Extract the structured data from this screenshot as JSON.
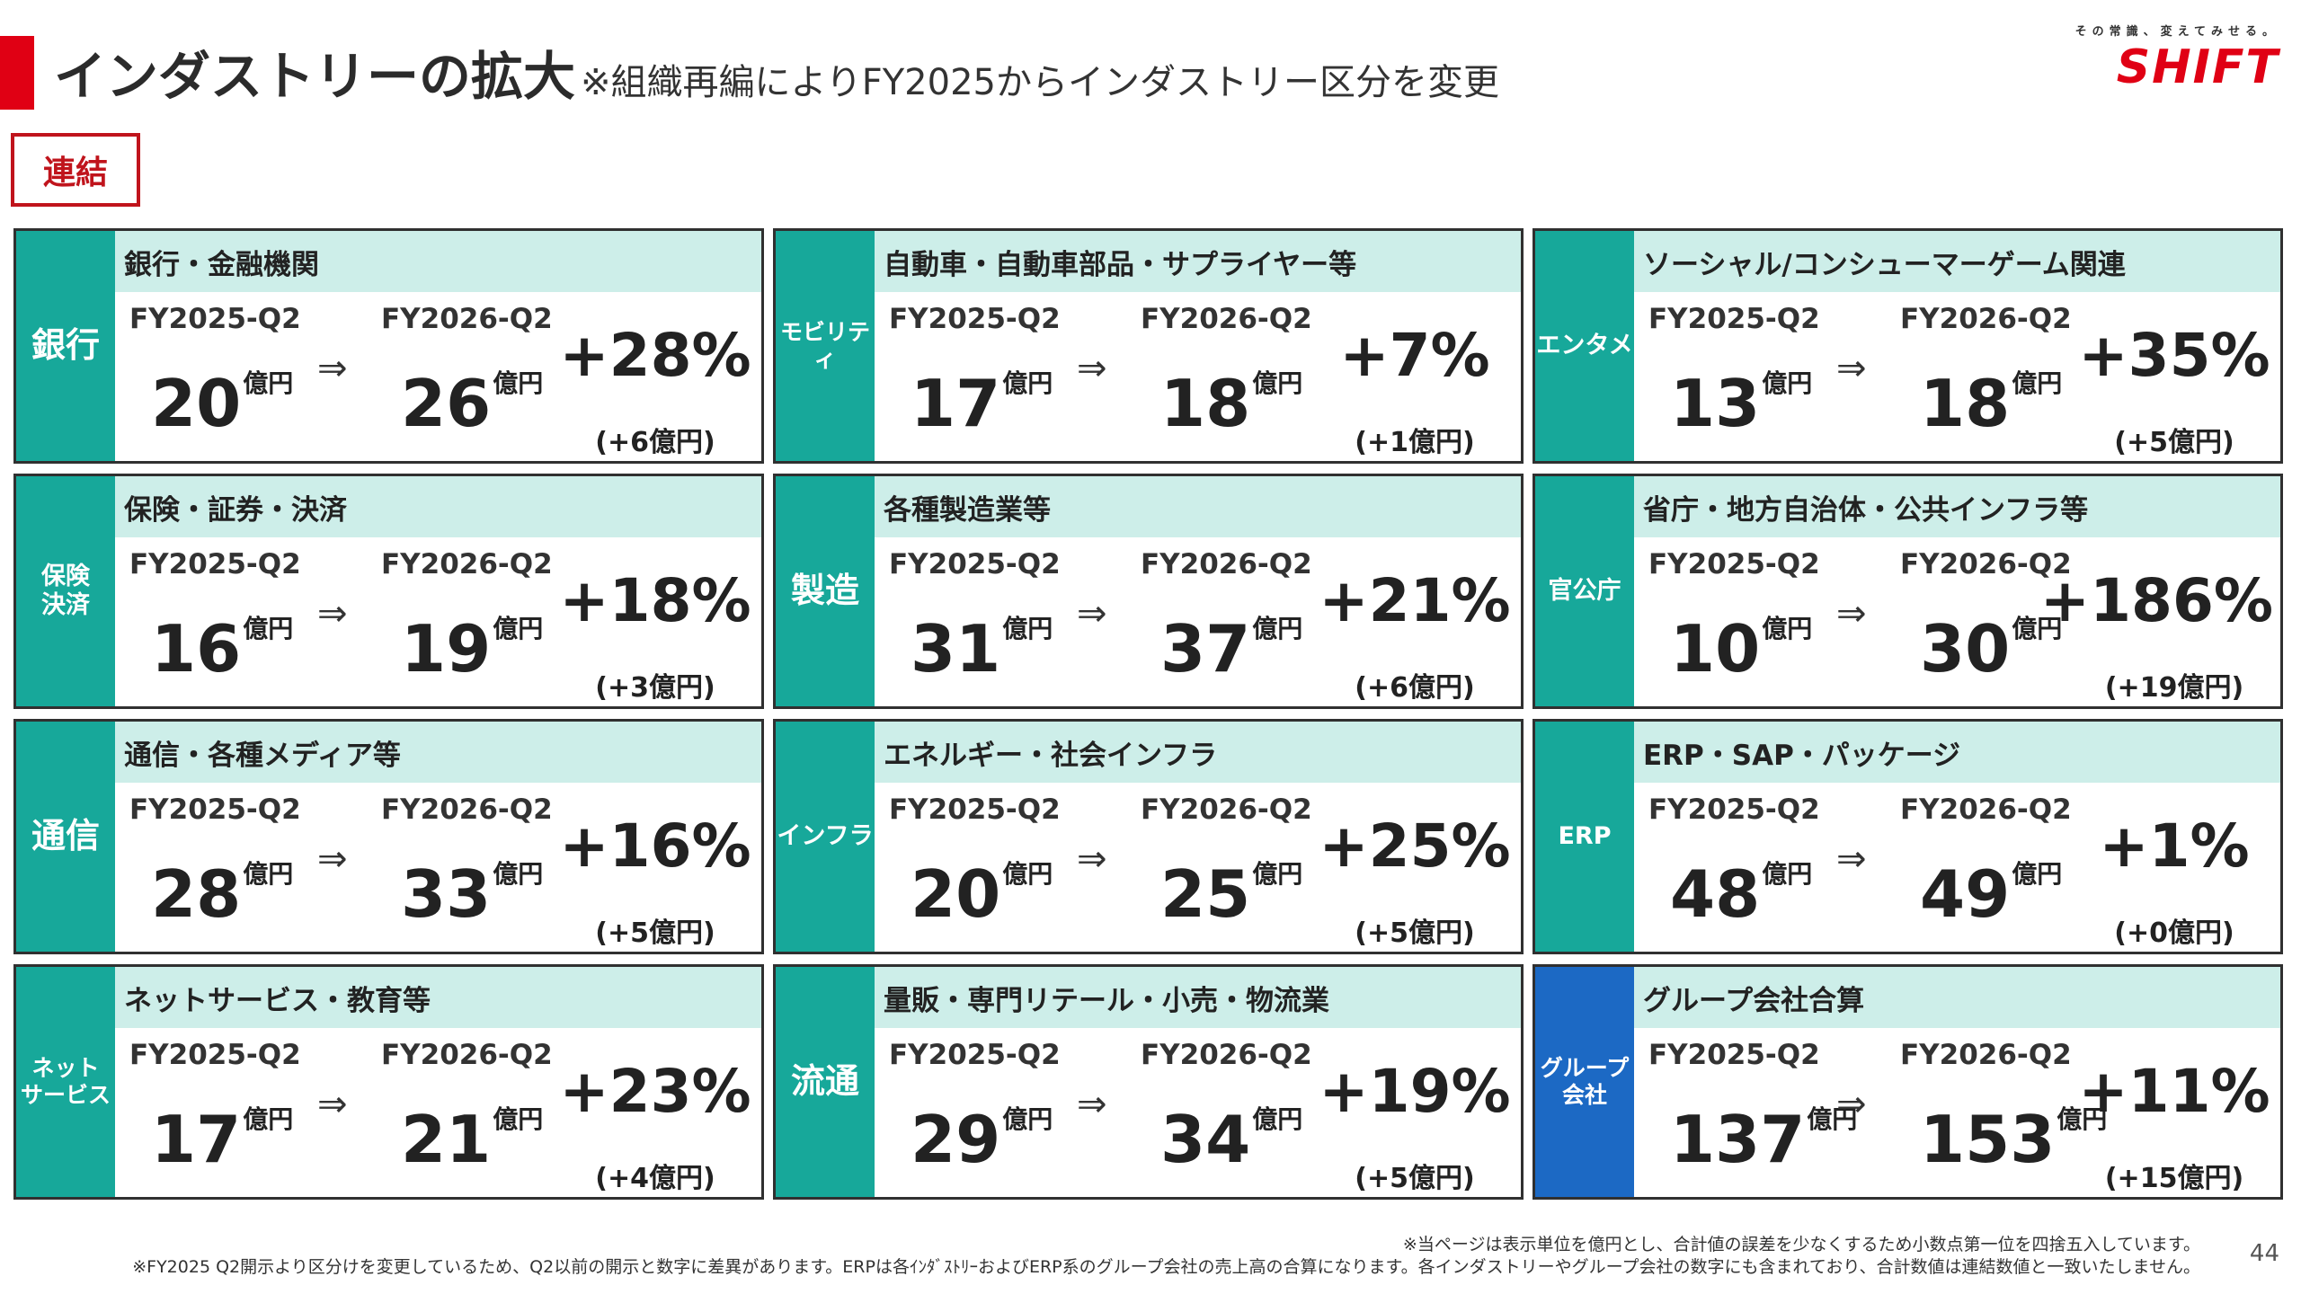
{
  "header": {
    "title": "インダストリーの拡大",
    "title_note": "※組織再編によりFY2025からインダストリー区分を変更",
    "logo_tagline": "その常識、変えてみせる。",
    "logo_word": "SHIFT",
    "consolidated_label": "連結"
  },
  "labels": {
    "fy_from": "FY2025-Q2",
    "fy_to": "FY2026-Q2",
    "unit": "億円",
    "arrow": "⇒"
  },
  "cards": [
    {
      "side": "銀行",
      "band": "銀行・金融機関",
      "from": "20",
      "to": "26",
      "pct": "+28%",
      "delta": "(+6億円)"
    },
    {
      "side": "モビリティ",
      "band": "自動車・自動車部品・サプライヤー等",
      "from": "17",
      "to": "18",
      "pct": "+7%",
      "delta": "(+1億円)"
    },
    {
      "side": "エンタメ",
      "band": "ソーシャル/コンシューマーゲーム関連",
      "from": "13",
      "to": "18",
      "pct": "+35%",
      "delta": "(+5億円)"
    },
    {
      "side": "保険\n決済",
      "band": "保険・証券・決済",
      "from": "16",
      "to": "19",
      "pct": "+18%",
      "delta": "(+3億円)"
    },
    {
      "side": "製造",
      "band": "各種製造業等",
      "from": "31",
      "to": "37",
      "pct": "+21%",
      "delta": "(+6億円)"
    },
    {
      "side": "官公庁",
      "band": "省庁・地方自治体・公共インフラ等",
      "from": "10",
      "to": "30",
      "pct": "+186%",
      "delta": "(+19億円)"
    },
    {
      "side": "通信",
      "band": "通信・各種メディア等",
      "from": "28",
      "to": "33",
      "pct": "+16%",
      "delta": "(+5億円)"
    },
    {
      "side": "インフラ",
      "band": "エネルギー・社会インフラ",
      "from": "20",
      "to": "25",
      "pct": "+25%",
      "delta": "(+5億円)"
    },
    {
      "side": "ERP",
      "band": "ERP・SAP・パッケージ",
      "from": "48",
      "to": "49",
      "pct": "+1%",
      "delta": "(+0億円)"
    },
    {
      "side": "ネット\nサービス",
      "band": "ネットサービス・教育等",
      "from": "17",
      "to": "21",
      "pct": "+23%",
      "delta": "(+4億円)"
    },
    {
      "side": "流通",
      "band": "量販・専門リテール・小売・物流業",
      "from": "29",
      "to": "34",
      "pct": "+19%",
      "delta": "(+5億円)"
    },
    {
      "side": "グループ\n会社",
      "band": "グループ会社合算",
      "from": "137",
      "to": "153",
      "pct": "+11%",
      "delta": "(+15億円)",
      "side_color": "#1c69c4"
    }
  ],
  "footer": {
    "note1": "※当ページは表示単位を億円とし、合計値の誤差を少なくするため小数点第一位を四捨五入しています。",
    "note2": "※FY2025 Q2開示より区分けを変更しているため、Q2以前の開示と数字に差異があります。ERPは各ｲﾝﾀﾞｽﾄﾘｰおよびERP系のグループ会社の売上高の合算になります。各インダストリーやグループ会社の数字にも含まれており、合計数値は連結数値と一致いたしません。",
    "page_number": "44"
  },
  "colors": {
    "accent": "#e00014",
    "side_green": "#17a89a",
    "side_blue": "#1c69c4",
    "band": "#cdeee9"
  }
}
